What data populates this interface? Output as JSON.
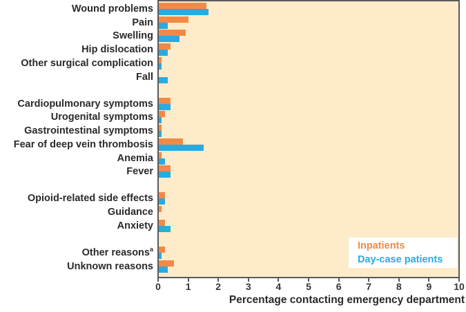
{
  "figure": {
    "background": "#FFFFFF",
    "plot_background": "#FDEBC9",
    "border_color": "#58595B",
    "text_color": "#2A2A2C"
  },
  "chart_data": {
    "type": "bar",
    "orientation": "horizontal",
    "title": "",
    "xlabel": "Percentage contacting emergency department",
    "ylabel": "",
    "xlim": [
      0,
      10
    ],
    "x_ticks": [
      0,
      1,
      2,
      3,
      4,
      5,
      6,
      7,
      8,
      9,
      10
    ],
    "grid": false,
    "legend_position": "inside-bottom-right",
    "categories": [
      {
        "label": "Wound problems",
        "group": 0
      },
      {
        "label": "Pain",
        "group": 0
      },
      {
        "label": "Swelling",
        "group": 0
      },
      {
        "label": "Hip dislocation",
        "group": 0
      },
      {
        "label": "Other surgical complication",
        "group": 0
      },
      {
        "label": "Fall",
        "group": 0
      },
      {
        "label": "Cardiopulmonary symptoms",
        "group": 1
      },
      {
        "label": "Urogenital symptoms",
        "group": 1
      },
      {
        "label": "Gastrointestinal symptoms",
        "group": 1
      },
      {
        "label": "Fear of deep vein thrombosis",
        "group": 1
      },
      {
        "label": "Anemia",
        "group": 1
      },
      {
        "label": "Fever",
        "group": 1
      },
      {
        "label": "Opioid-related side effects",
        "group": 2
      },
      {
        "label": "Guidance",
        "group": 2
      },
      {
        "label": "Anxiety",
        "group": 2
      },
      {
        "label": "Other reasons",
        "sup": "a",
        "group": 3
      },
      {
        "label": "Unknown reasons",
        "group": 3
      }
    ],
    "series": [
      {
        "name": "Inpatients",
        "color": "#F28A45",
        "values": [
          1.6,
          1.0,
          0.9,
          0.4,
          0.1,
          0,
          0.4,
          0.2,
          0.1,
          0.8,
          0.1,
          0.4,
          0.2,
          0.1,
          0.2,
          0.2,
          0.5
        ]
      },
      {
        "name": "Day-case patients",
        "color": "#29AAE1",
        "values": [
          1.65,
          0.3,
          0.7,
          0.3,
          0.1,
          0.3,
          0.4,
          0.1,
          0.1,
          1.5,
          0.2,
          0.4,
          0.2,
          0,
          0.4,
          0.1,
          0.3
        ]
      }
    ]
  }
}
